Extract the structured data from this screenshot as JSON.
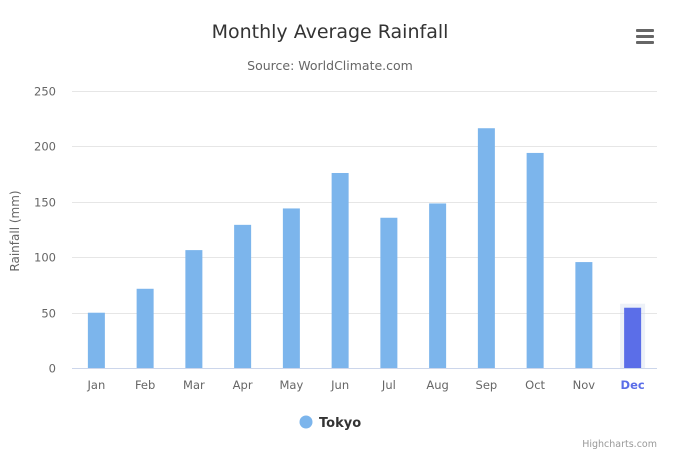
{
  "chart_data": {
    "type": "bar",
    "title": "Monthly Average Rainfall",
    "subtitle": "Source: WorldClimate.com",
    "xlabel": "",
    "ylabel": "Rainfall (mm)",
    "ylim": [
      0,
      250
    ],
    "yticks": [
      0,
      50,
      100,
      150,
      200,
      250
    ],
    "categories": [
      "Jan",
      "Feb",
      "Mar",
      "Apr",
      "May",
      "Jun",
      "Jul",
      "Aug",
      "Sep",
      "Oct",
      "Nov",
      "Dec"
    ],
    "series": [
      {
        "name": "Tokyo",
        "values": [
          49.9,
          71.5,
          106.4,
          129.2,
          144.0,
          176.0,
          135.6,
          148.5,
          216.4,
          194.1,
          95.6,
          54.4
        ],
        "color": "#7cb5ec"
      }
    ],
    "highlighted_category": "Dec",
    "highlight_color": "#5b6ee8",
    "grid": true,
    "legend_position": "bottom-center"
  },
  "menu": {
    "icon": "hamburger-menu-icon"
  },
  "credits": "Highcharts.com"
}
